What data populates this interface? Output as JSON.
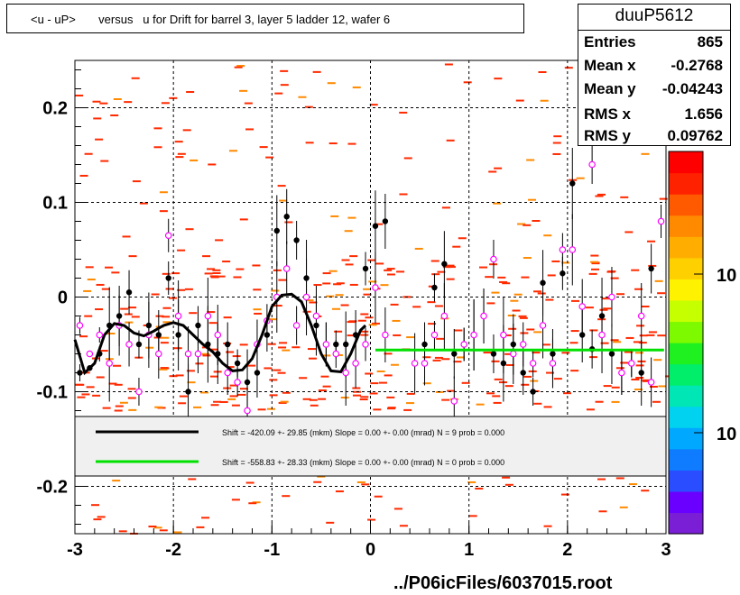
{
  "title": "<u - uP>       versus   u for Drift for barrel 3, layer 5 ladder 12, wafer 6",
  "stats": {
    "name": "duuP5612",
    "rows": [
      {
        "key": "Entries",
        "value": "865"
      },
      {
        "key": "Mean x",
        "value": "-0.2768"
      },
      {
        "key": "Mean y",
        "value": "-0.04243"
      },
      {
        "key": "RMS x",
        "value": "1.656"
      },
      {
        "key": "RMS y",
        "value": "0.09762"
      }
    ]
  },
  "footer": "../P06icFiles/6037015.root",
  "colorbar": {
    "labels": [
      "10",
      "10"
    ],
    "colors": [
      "#7a1fd6",
      "#6a00ff",
      "#2a4dff",
      "#0f7cff",
      "#00a8ff",
      "#00d2f0",
      "#00e6b4",
      "#00ee6a",
      "#1ff020",
      "#7dfa00",
      "#c6ff00",
      "#fff200",
      "#ffd000",
      "#ffae00",
      "#ff8a00",
      "#ff5a00",
      "#ff2200",
      "#ff0000"
    ]
  },
  "legend": [
    {
      "color": "#000000",
      "text": "Shift =  -420.09 +- 29.85 (mkm) Slope =    0.00 +- 0.00 (mrad)  N = 9 prob = 0.000"
    },
    {
      "color": "#00e000",
      "text": "Shift =  -558.83 +- 28.33 (mkm) Slope =    0.00 +- 0.00 (mrad)  N = 0 prob = 0.000"
    }
  ],
  "chart_data": {
    "type": "scatter",
    "xlim": [
      -3,
      3
    ],
    "ylim": [
      -0.25,
      0.25
    ],
    "x_ticks": [
      "-3",
      "-2",
      "-1",
      "0",
      "1",
      "2",
      "3"
    ],
    "y_ticks": [
      "-0.2",
      "-0.1",
      "0",
      "0.1",
      "0.2"
    ],
    "grid": true,
    "series": [
      {
        "name": "profile_black",
        "color": "#000000",
        "points": [
          [
            -2.95,
            -0.08
          ],
          [
            -2.85,
            -0.075
          ],
          [
            -2.75,
            -0.06
          ],
          [
            -2.65,
            -0.03
          ],
          [
            -2.55,
            -0.02
          ],
          [
            -2.45,
            0.005
          ],
          [
            -2.35,
            -0.05
          ],
          [
            -2.25,
            -0.03
          ],
          [
            -2.15,
            -0.04
          ],
          [
            -2.05,
            0.02
          ],
          [
            -1.95,
            -0.04
          ],
          [
            -1.85,
            -0.1
          ],
          [
            -1.75,
            -0.03
          ],
          [
            -1.65,
            -0.05
          ],
          [
            -1.55,
            -0.06
          ],
          [
            -1.45,
            -0.05
          ],
          [
            -1.35,
            -0.07
          ],
          [
            -1.25,
            -0.09
          ],
          [
            -1.15,
            -0.08
          ],
          [
            -1.05,
            -0.04
          ],
          [
            -0.95,
            0.07
          ],
          [
            -0.85,
            0.085
          ],
          [
            -0.75,
            0.06
          ],
          [
            -0.65,
            0.02
          ],
          [
            -0.55,
            -0.03
          ],
          [
            -0.45,
            -0.05
          ],
          [
            -0.35,
            -0.05
          ],
          [
            -0.25,
            -0.05
          ],
          [
            -0.15,
            -0.04
          ],
          [
            -0.05,
            0.03
          ],
          [
            0.05,
            0.075
          ],
          [
            0.15,
            0.08
          ],
          [
            0.55,
            -0.05
          ],
          [
            0.65,
            0.01
          ],
          [
            0.75,
            0.035
          ],
          [
            0.85,
            -0.06
          ],
          [
            0.95,
            -0.05
          ],
          [
            1.05,
            -0.04
          ],
          [
            1.15,
            -0.02
          ],
          [
            1.25,
            -0.06
          ],
          [
            1.35,
            -0.07
          ],
          [
            1.45,
            -0.05
          ],
          [
            1.55,
            -0.08
          ],
          [
            1.65,
            -0.1
          ],
          [
            1.75,
            0.015
          ],
          [
            1.85,
            -0.06
          ],
          [
            1.95,
            0.025
          ],
          [
            2.05,
            0.12
          ],
          [
            2.15,
            -0.04
          ],
          [
            2.25,
            -0.055
          ],
          [
            2.35,
            -0.02
          ],
          [
            2.45,
            -0.06
          ],
          [
            2.55,
            -0.08
          ],
          [
            2.65,
            -0.07
          ],
          [
            2.75,
            -0.08
          ],
          [
            2.85,
            0.03
          ]
        ]
      },
      {
        "name": "profile_magenta",
        "color": "#ff00ff",
        "points": [
          [
            -2.95,
            -0.03
          ],
          [
            -2.85,
            -0.06
          ],
          [
            -2.75,
            -0.04
          ],
          [
            -2.65,
            -0.07
          ],
          [
            -2.55,
            -0.03
          ],
          [
            -2.45,
            -0.05
          ],
          [
            -2.35,
            -0.1
          ],
          [
            -2.25,
            -0.04
          ],
          [
            -2.15,
            -0.06
          ],
          [
            -2.05,
            0.065
          ],
          [
            -1.95,
            -0.02
          ],
          [
            -1.85,
            -0.06
          ],
          [
            -1.75,
            -0.06
          ],
          [
            -1.65,
            -0.02
          ],
          [
            -1.55,
            -0.04
          ],
          [
            -1.45,
            -0.08
          ],
          [
            -1.35,
            -0.09
          ],
          [
            -1.25,
            -0.12
          ],
          [
            -1.15,
            -0.05
          ],
          [
            -1.05,
            -0.025
          ],
          [
            -0.95,
            0.0
          ],
          [
            -0.85,
            0.03
          ],
          [
            -0.75,
            -0.03
          ],
          [
            -0.65,
            0.0
          ],
          [
            -0.55,
            -0.02
          ],
          [
            -0.45,
            -0.05
          ],
          [
            -0.35,
            -0.06
          ],
          [
            -0.25,
            -0.08
          ],
          [
            -0.15,
            -0.07
          ],
          [
            -0.05,
            -0.05
          ],
          [
            0.05,
            0.01
          ],
          [
            0.15,
            -0.04
          ],
          [
            0.45,
            -0.07
          ],
          [
            0.55,
            -0.07
          ],
          [
            0.65,
            -0.04
          ],
          [
            0.75,
            -0.02
          ],
          [
            0.85,
            -0.11
          ],
          [
            0.95,
            -0.05
          ],
          [
            1.05,
            -0.04
          ],
          [
            1.15,
            -0.02
          ],
          [
            1.25,
            0.04
          ],
          [
            1.35,
            -0.04
          ],
          [
            1.45,
            -0.06
          ],
          [
            1.55,
            -0.05
          ],
          [
            1.65,
            -0.07
          ],
          [
            1.75,
            -0.03
          ],
          [
            1.85,
            -0.07
          ],
          [
            1.95,
            0.05
          ],
          [
            2.05,
            0.05
          ],
          [
            2.15,
            -0.01
          ],
          [
            2.25,
            0.14
          ],
          [
            2.35,
            -0.04
          ],
          [
            2.45,
            0.0
          ],
          [
            2.55,
            -0.08
          ],
          [
            2.65,
            -0.07
          ],
          [
            2.75,
            -0.02
          ],
          [
            2.85,
            -0.09
          ],
          [
            2.95,
            0.08
          ]
        ]
      },
      {
        "name": "fit_black",
        "color": "#000000",
        "style": "smooth_line",
        "points": [
          [
            -3.0,
            -0.045
          ],
          [
            -2.9,
            -0.08
          ],
          [
            -2.8,
            -0.07
          ],
          [
            -2.7,
            -0.04
          ],
          [
            -2.6,
            -0.028
          ],
          [
            -2.5,
            -0.03
          ],
          [
            -2.4,
            -0.038
          ],
          [
            -2.3,
            -0.041
          ],
          [
            -2.2,
            -0.036
          ],
          [
            -2.1,
            -0.03
          ],
          [
            -2.0,
            -0.027
          ],
          [
            -1.9,
            -0.03
          ],
          [
            -1.8,
            -0.04
          ],
          [
            -1.7,
            -0.05
          ],
          [
            -1.6,
            -0.058
          ],
          [
            -1.5,
            -0.07
          ],
          [
            -1.4,
            -0.078
          ],
          [
            -1.3,
            -0.077
          ],
          [
            -1.2,
            -0.065
          ],
          [
            -1.1,
            -0.04
          ],
          [
            -1.0,
            -0.01
          ],
          [
            -0.9,
            0.002
          ],
          [
            -0.8,
            0.003
          ],
          [
            -0.7,
            -0.005
          ],
          [
            -0.6,
            -0.03
          ],
          [
            -0.5,
            -0.06
          ],
          [
            -0.4,
            -0.078
          ],
          [
            -0.3,
            -0.079
          ],
          [
            -0.2,
            -0.06
          ],
          [
            -0.1,
            -0.035
          ],
          [
            -0.05,
            -0.03
          ]
        ]
      },
      {
        "name": "fit_green",
        "color": "#00e000",
        "style": "line",
        "points": [
          [
            0.05,
            -0.056
          ],
          [
            2.98,
            -0.056
          ]
        ]
      }
    ]
  }
}
